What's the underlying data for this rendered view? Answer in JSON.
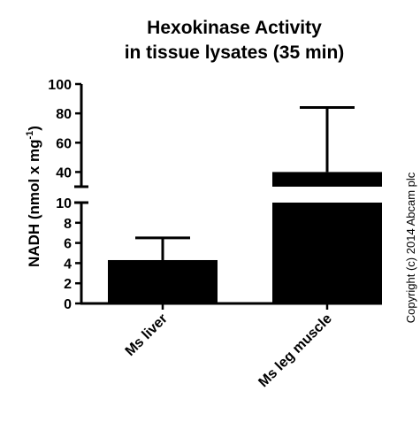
{
  "chart_data": {
    "type": "bar",
    "title_line1": "Hexokinase Activity",
    "title_line2": "in tissue lysates (35 min)",
    "ylabel_main": "NADH (nmol x mg",
    "ylabel_sup": "-1",
    "ylabel_close": ")",
    "xlabel": "",
    "axis_break": true,
    "ylim_lower": [
      0,
      10
    ],
    "ylim_upper": [
      30,
      100
    ],
    "yticks_lower": [
      0,
      2,
      4,
      6,
      8,
      10
    ],
    "yticks_upper": [
      40,
      60,
      80,
      100
    ],
    "ytick_labels_lower": [
      "0",
      "2",
      "4",
      "6",
      "8",
      "10"
    ],
    "ytick_labels_upper": [
      "40",
      "60",
      "80",
      "100"
    ],
    "categories": [
      "Ms liver",
      "Ms leg muscle"
    ],
    "values": [
      4.3,
      40
    ],
    "error_upper": [
      6.5,
      84
    ],
    "bar_color": "#000000",
    "grid": false,
    "legend": "none"
  },
  "footer": {
    "copyright": "Copyright (c) 2014 Abcam plc"
  }
}
